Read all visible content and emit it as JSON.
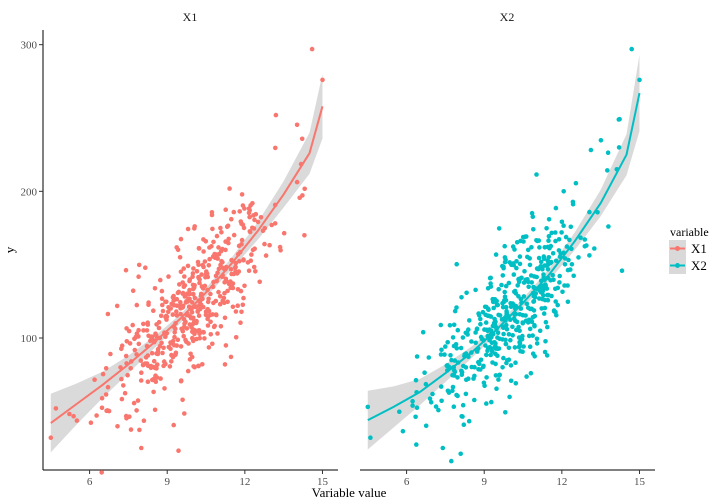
{
  "chart_data": {
    "type": "scatter",
    "facets": [
      "X1",
      "X2"
    ],
    "xlabel": "Variable value",
    "ylabel": "y",
    "x_ticks": [
      6,
      9,
      12,
      15
    ],
    "y_ticks": [
      100,
      200,
      300
    ],
    "xlim": [
      4.2,
      15.6
    ],
    "ylim": [
      10,
      310
    ],
    "grid": false,
    "smooth": true,
    "legend": {
      "title": "variable",
      "position": "right",
      "entries": [
        {
          "name": "X1",
          "color": "#F8766D"
        },
        {
          "name": "X2",
          "color": "#00BFC4"
        }
      ]
    },
    "series": [
      {
        "name": "X1",
        "color": "#F8766D",
        "fit_curve": [
          [
            4.5,
            42
          ],
          [
            5.5,
            55
          ],
          [
            6.5,
            68
          ],
          [
            7.5,
            82
          ],
          [
            8.5,
            97
          ],
          [
            9.5,
            113
          ],
          [
            10.5,
            131
          ],
          [
            11.5,
            151
          ],
          [
            12.5,
            173
          ],
          [
            13.5,
            198
          ],
          [
            14.5,
            226
          ],
          [
            15.0,
            258
          ]
        ],
        "fit_band_halfwidth": [
          20,
          14,
          9,
          6,
          4,
          3,
          3,
          4,
          6,
          9,
          14,
          22
        ],
        "outliers": [
          [
            4.5,
            32
          ],
          [
            4.7,
            52
          ],
          [
            14.6,
            297
          ],
          [
            15.0,
            276
          ],
          [
            13.2,
            252
          ],
          [
            14.3,
            170
          ],
          [
            8.0,
            25
          ]
        ]
      },
      {
        "name": "X2",
        "color": "#00BFC4",
        "fit_curve": [
          [
            4.5,
            44
          ],
          [
            5.5,
            53
          ],
          [
            6.5,
            63
          ],
          [
            7.5,
            76
          ],
          [
            8.5,
            90
          ],
          [
            9.5,
            106
          ],
          [
            10.5,
            124
          ],
          [
            11.5,
            143
          ],
          [
            12.5,
            166
          ],
          [
            13.5,
            192
          ],
          [
            14.5,
            225
          ],
          [
            15.0,
            267
          ]
        ],
        "fit_band_halfwidth": [
          20,
          14,
          9,
          6,
          4,
          3,
          3,
          4,
          6,
          9,
          14,
          26
        ],
        "outliers": [
          [
            4.6,
            32
          ],
          [
            4.5,
            53
          ],
          [
            14.7,
            297
          ],
          [
            15.0,
            276
          ],
          [
            14.2,
            249
          ],
          [
            13.8,
            176
          ],
          [
            7.4,
            25
          ]
        ]
      }
    ]
  }
}
